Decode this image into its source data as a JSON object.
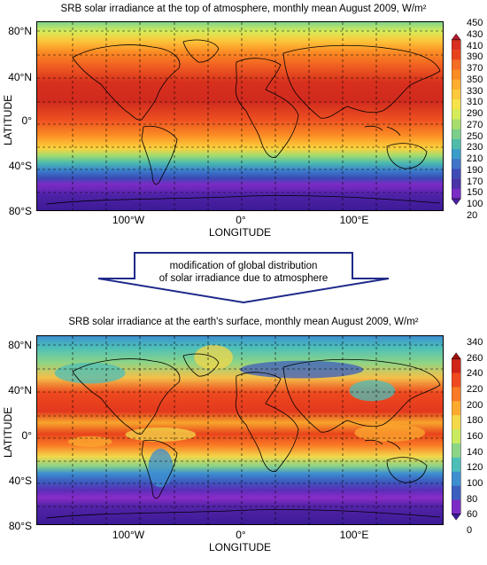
{
  "top_map": {
    "title": "SRB solar irradiance at the top of atmosphere, monthly mean August 2009, W/m²",
    "lat_labels": [
      "80°N",
      "40°N",
      "0°",
      "40°S",
      "80°S"
    ],
    "lon_labels": [
      "100°W",
      "0°",
      "100°E"
    ],
    "ylabel": "LATITUDE",
    "xlabel": "LONGITUDE",
    "colorbar_labels": [
      "450",
      "430",
      "410",
      "390",
      "370",
      "350",
      "330",
      "310",
      "290",
      "270",
      "250",
      "230",
      "210",
      "190",
      "170",
      "150",
      "100",
      "20"
    ]
  },
  "arrow": {
    "line1": "modification of global distribution",
    "line2": "of solar irradiance due to atmosphere"
  },
  "bottom_map": {
    "title": "SRB solar irradiance at the earth's surface, monthly mean August 2009, W/m²",
    "lat_labels": [
      "80°N",
      "40°N",
      "0°",
      "40°S",
      "80°S"
    ],
    "lon_labels": [
      "100°W",
      "0°",
      "100°E"
    ],
    "ylabel": "LATITUDE",
    "xlabel": "LONGITUDE",
    "colorbar_labels": [
      "340",
      "260",
      "240",
      "220",
      "200",
      "180",
      "160",
      "140",
      "120",
      "100",
      "80",
      "60",
      "0"
    ]
  },
  "colors": {
    "top_scale": [
      "#b2182b",
      "#d7301f",
      "#e8441c",
      "#f46d25",
      "#fb8b24",
      "#fdae2f",
      "#fec93a",
      "#f6e24a",
      "#d5ec5a",
      "#a7dd6d",
      "#7bcf8a",
      "#4fbcab",
      "#3a9cc9",
      "#3f74c8",
      "#3e4bb6",
      "#4b33a8",
      "#7a2cc4",
      "#4b1fa0"
    ],
    "bottom_scale": [
      "#a01010",
      "#d0261a",
      "#ef4a1f",
      "#fa7a25",
      "#fcaa2f",
      "#f3d84a",
      "#c9ea5f",
      "#8cd486",
      "#4cbfb9",
      "#3d8fd0",
      "#3c5fc0",
      "#7d2bc6",
      "#3c1a96"
    ]
  }
}
